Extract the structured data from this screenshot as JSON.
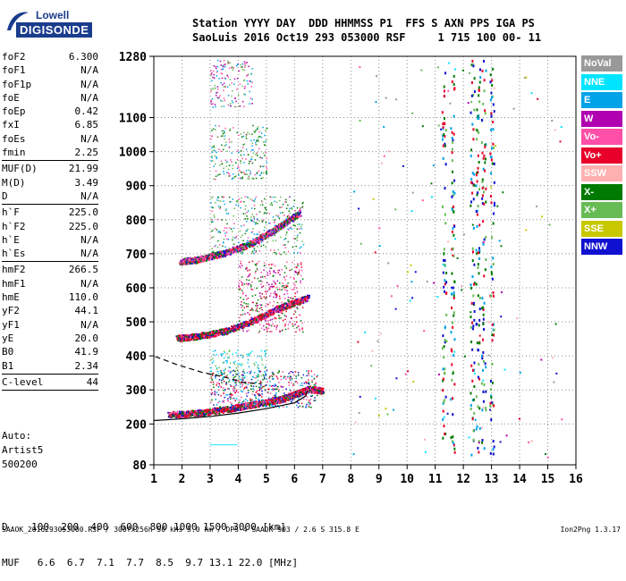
{
  "logo": {
    "line1": "Lowell",
    "line2": "DIGISONDE"
  },
  "header": {
    "labels": "Station YYYY DAY  DDD HHMMSS P1  FFS S AXN PPS IGA PS",
    "values": "SaoLuis 2016 Oct19 293 053000 RSF     1 715 100 00- 11"
  },
  "params": {
    "group1": [
      {
        "k": "foF2",
        "v": "6.300"
      },
      {
        "k": "foF1",
        "v": "N/A"
      },
      {
        "k": "foF1p",
        "v": "N/A"
      },
      {
        "k": "foE",
        "v": "N/A"
      },
      {
        "k": "foEp",
        "v": "0.42"
      },
      {
        "k": "fxI",
        "v": "6.85"
      },
      {
        "k": "foEs",
        "v": "N/A"
      },
      {
        "k": "fmin",
        "v": "2.25"
      }
    ],
    "group2": [
      {
        "k": "MUF(D)",
        "v": "21.99"
      },
      {
        "k": "M(D)",
        "v": "3.49"
      },
      {
        "k": "D",
        "v": "N/A"
      }
    ],
    "group3": [
      {
        "k": "h`F",
        "v": "225.0"
      },
      {
        "k": "h`F2",
        "v": "225.0"
      },
      {
        "k": "h`E",
        "v": "N/A"
      },
      {
        "k": "h`Es",
        "v": "N/A"
      }
    ],
    "group4": [
      {
        "k": "hmF2",
        "v": "266.5"
      },
      {
        "k": "hmF1",
        "v": "N/A"
      },
      {
        "k": "hmE",
        "v": "110.0"
      },
      {
        "k": "yF2",
        "v": "44.1"
      },
      {
        "k": "yF1",
        "v": "N/A"
      },
      {
        "k": "yE",
        "v": "20.0"
      },
      {
        "k": "B0",
        "v": "41.9"
      },
      {
        "k": "B1",
        "v": "2.34"
      }
    ],
    "group5": [
      {
        "k": "C-level",
        "v": "44"
      }
    ]
  },
  "auto": {
    "line1": "Auto:",
    "line2": "Artist5",
    "line3": "500200"
  },
  "legend": [
    {
      "label": "NoVal",
      "color": "#999999",
      "text": "#ffffff"
    },
    {
      "label": "NNE",
      "color": "#00e5ff",
      "text": "#ffffff"
    },
    {
      "label": "E",
      "color": "#00a2e8",
      "text": "#ffffff"
    },
    {
      "label": "W",
      "color": "#b000b0",
      "text": "#ffffff"
    },
    {
      "label": "Vo-",
      "color": "#ff4fa8",
      "text": "#ffffff"
    },
    {
      "label": "Vo+",
      "color": "#e8002a",
      "text": "#ffffff"
    },
    {
      "label": "SSW",
      "color": "#ffb0b0",
      "text": "#ffffff"
    },
    {
      "label": "X-",
      "color": "#007a00",
      "text": "#ffffff"
    },
    {
      "label": "X+",
      "color": "#66bb55",
      "text": "#ffffff"
    },
    {
      "label": "SSE",
      "color": "#c8c800",
      "text": "#ffffff"
    },
    {
      "label": "NNW",
      "color": "#1010d0",
      "text": "#ffffff"
    }
  ],
  "bottom": {
    "dline": "D    100  200  400  600  800 1000 1500 3000 [km]",
    "mufline": "MUF   6.6  6.7  7.1  7.7  8.5  9.7 13.1 22.0 [MHz]"
  },
  "footer": {
    "left": "SAAOK_2016293053000.RSF / 300fx256h 50 kHs 5.0 km / DPS-4 SAAOK 903 / 2.6 S 315.8 E",
    "right": "Ion2Png 1.3.17"
  },
  "chart_data": {
    "type": "scatter",
    "title": "",
    "xlabel": "",
    "ylabel": "",
    "xlim": [
      1,
      16
    ],
    "ylim": [
      80,
      1280
    ],
    "xticks": [
      1,
      2,
      3,
      4,
      5,
      6,
      7,
      8,
      9,
      10,
      11,
      12,
      13,
      14,
      15,
      16
    ],
    "yticks": [
      80,
      200,
      300,
      400,
      500,
      600,
      700,
      800,
      900,
      1000,
      1100,
      1280
    ],
    "grid": "dotted",
    "series": [
      {
        "name": "Vo+",
        "color": "#e8002a",
        "trace": "1st order F trace",
        "x": [
          1.5,
          2.5,
          3.5,
          4.5,
          5.5,
          6.0,
          6.5,
          7.0
        ],
        "y": [
          225,
          230,
          240,
          255,
          270,
          285,
          300,
          295
        ]
      },
      {
        "name": "Vo+",
        "color": "#e8002a",
        "trace": "2nd multiple",
        "x": [
          1.8,
          2.5,
          3.5,
          4.5,
          5.5,
          6.5
        ],
        "y": [
          450,
          455,
          470,
          500,
          540,
          570
        ]
      },
      {
        "name": "Vo-",
        "color": "#ff4fa8",
        "trace": "3rd multiple",
        "x": [
          1.9,
          2.5,
          3.5,
          4.5,
          5.5,
          6.2
        ],
        "y": [
          675,
          680,
          700,
          730,
          780,
          820
        ]
      }
    ],
    "model_curves": [
      {
        "style": "solid",
        "x": [
          1,
          2,
          3,
          4,
          5,
          6,
          6.4,
          6.45
        ],
        "y": [
          210,
          215,
          222,
          232,
          245,
          262,
          282,
          298
        ]
      },
      {
        "style": "dashed",
        "x": [
          1.05,
          1.8,
          2.7,
          3.5,
          4.2,
          4.8
        ],
        "y": [
          398,
          375,
          352,
          338,
          322,
          318
        ]
      }
    ]
  }
}
